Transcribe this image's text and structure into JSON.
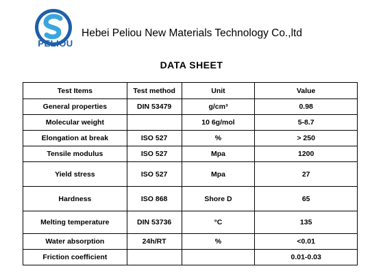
{
  "header": {
    "logo_text": "PELIOU",
    "company": "Hebei Peliou New Materials Technology Co.,ltd",
    "title": "DATA SHEET"
  },
  "colors": {
    "logo_blue": "#1e5fa8",
    "logo_cyan": "#3aa6dc"
  },
  "table": {
    "columns": [
      "Test Items",
      "Test method",
      "Unit",
      "Value"
    ],
    "rows": [
      [
        "General properties",
        "DIN 53479",
        "g/cm³",
        "0.98"
      ],
      [
        "Molecular weight",
        "",
        "10 6g/mol",
        "5-8.7"
      ],
      [
        "Elongation at break",
        "ISO 527",
        "%",
        "> 250"
      ],
      [
        "Tensile modulus",
        "ISO 527",
        "Mpa",
        "1200"
      ],
      [
        "Yield stress",
        "ISO 527",
        "Mpa",
        "27"
      ],
      [
        "Hardness",
        "ISO 868",
        "Shore D",
        "65"
      ],
      [
        "Melting temperature",
        "DIN 53736",
        "°C",
        "135"
      ],
      [
        "Water absorption",
        "24h/RT",
        "%",
        "<0.01"
      ],
      [
        "Friction coefficient",
        "",
        "",
        "0.01-0.03"
      ]
    ]
  }
}
